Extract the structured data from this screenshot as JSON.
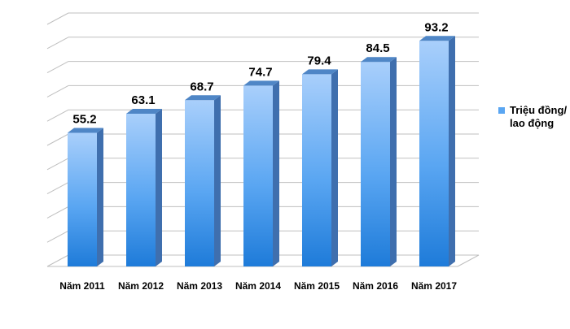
{
  "chart_data": {
    "type": "bar",
    "style": "3d-column",
    "categories": [
      "Năm 2011",
      "Năm 2012",
      "Năm 2013",
      "Năm 2014",
      "Năm 2015",
      "Năm 2016",
      "Năm 2017"
    ],
    "series": [
      {
        "name": "Triệu đồng/ lao động",
        "values": [
          55.2,
          63.1,
          68.7,
          74.7,
          79.4,
          84.5,
          93.2
        ],
        "data_labels": [
          "55.2",
          "63.1",
          "68.7",
          "74.7",
          "79.4",
          "84.5",
          "93.2"
        ]
      }
    ],
    "ylim": [
      0,
      100
    ],
    "grid": true,
    "legend": "right",
    "colors": {
      "bar_top": "#a9cffb",
      "bar_mid": "#5aa6f2",
      "bar_bottom": "#1e7bd9",
      "bar_side": "#3f6fae",
      "bar_cap": "#4f86c6",
      "grid": "#bfbfbf"
    }
  }
}
